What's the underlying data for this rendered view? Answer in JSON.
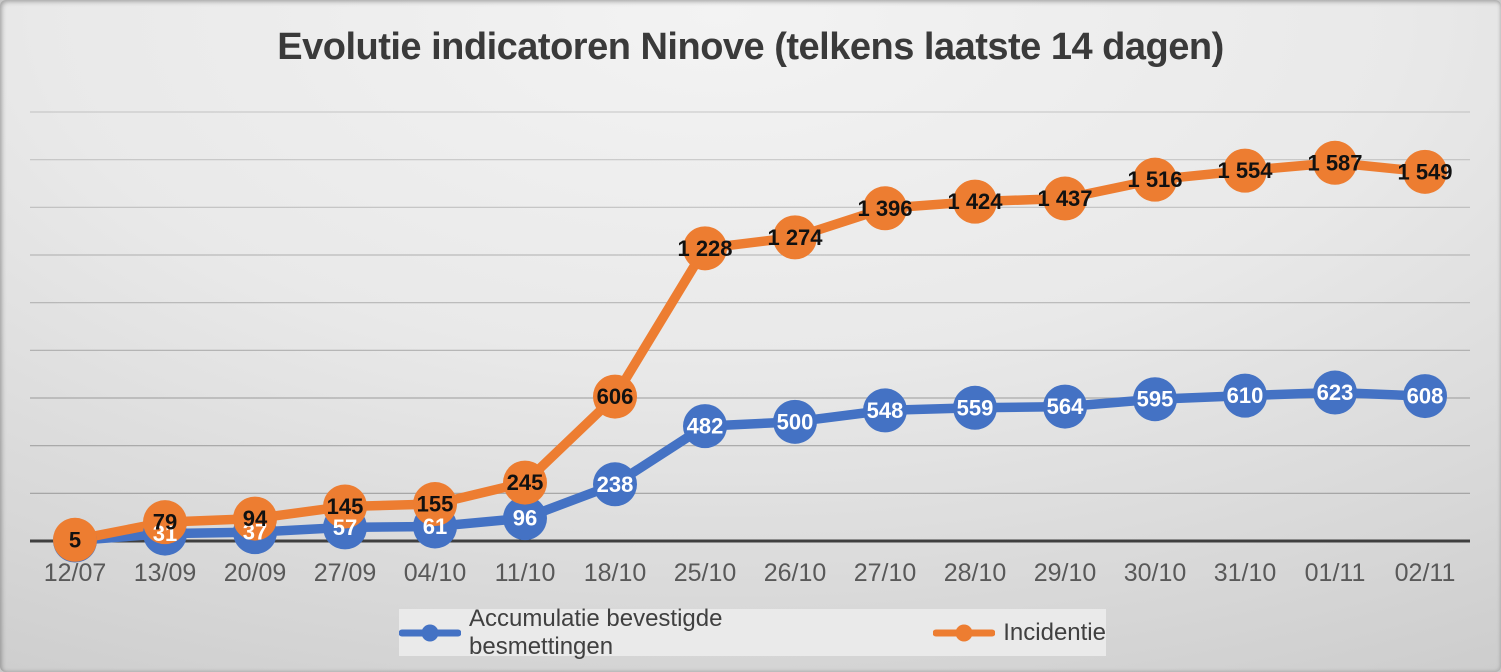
{
  "title": "Evolutie indicatoren Ninove (telkens laatste 14 dagen)",
  "chart_data": {
    "type": "line",
    "title": "Evolutie indicatoren Ninove (telkens laatste 14 dagen)",
    "categories": [
      "12/07",
      "13/09",
      "20/09",
      "27/09",
      "04/10",
      "11/10",
      "18/10",
      "25/10",
      "26/10",
      "27/10",
      "28/10",
      "29/10",
      "30/10",
      "31/10",
      "01/11",
      "02/11"
    ],
    "series": [
      {
        "name": "Accumulatie bevestigde besmettingen",
        "color": "#4472C4",
        "label_color": "#ffffff",
        "values": [
          2,
          31,
          37,
          57,
          61,
          96,
          238,
          482,
          500,
          548,
          559,
          564,
          595,
          610,
          623,
          608
        ],
        "labels": [
          "",
          "31",
          "37",
          "57",
          "61",
          "96",
          "238",
          "482",
          "500",
          "548",
          "559",
          "564",
          "595",
          "610",
          "623",
          "608"
        ]
      },
      {
        "name": "Incidentie",
        "color": "#ED7D31",
        "label_color": "#111111",
        "values": [
          5,
          79,
          94,
          145,
          155,
          245,
          606,
          1228,
          1274,
          1396,
          1424,
          1437,
          1516,
          1554,
          1587,
          1549
        ],
        "labels": [
          "5",
          "79",
          "94",
          "145",
          "155",
          "245",
          "606",
          "1 228",
          "1 274",
          "1 396",
          "1 424",
          "1 437",
          "1 516",
          "1 554",
          "1 587",
          "1 549"
        ]
      }
    ],
    "xlabel": "",
    "ylabel": "",
    "ylim": [
      0,
      1800
    ],
    "gridline_step": 200,
    "grid": true,
    "y_axis_labels_visible": false,
    "legend_position": "bottom",
    "data_labels": "centered on markers",
    "axis_label_color": "#595959",
    "gridline_color": "#8f8f8f",
    "axis_line_color": "#3f3f3f",
    "title_color": "#3a3a3a"
  }
}
